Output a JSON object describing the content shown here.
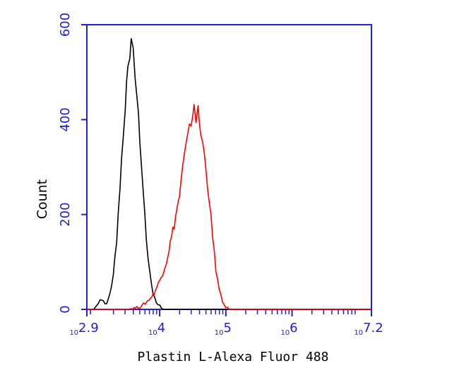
{
  "chart_data": {
    "type": "area",
    "title": "",
    "xlabel": "Plastin L-Alexa Fluor 488",
    "ylabel": "Count",
    "x_scale": "log10",
    "xlim_log10": [
      2.9,
      7.2
    ],
    "ylim": [
      0,
      600
    ],
    "y_ticks": [
      0,
      200,
      400,
      600
    ],
    "x_tick_labels": [
      {
        "base": "10",
        "exp": "2.9",
        "log10": 2.9
      },
      {
        "base": "10",
        "exp": "4",
        "log10": 4
      },
      {
        "base": "10",
        "exp": "5",
        "log10": 5
      },
      {
        "base": "10",
        "exp": "6",
        "log10": 6
      },
      {
        "base": "10",
        "exp": "7.2",
        "log10": 7.2
      }
    ],
    "grid": false,
    "legend": "none",
    "axis_color": "#2222cc",
    "series": [
      {
        "color": "#000000",
        "points_log10_x": [
          [
            2.9,
            0
          ],
          [
            3.0,
            0
          ],
          [
            3.05,
            8
          ],
          [
            3.1,
            22
          ],
          [
            3.15,
            18
          ],
          [
            3.2,
            10
          ],
          [
            3.25,
            35
          ],
          [
            3.3,
            70
          ],
          [
            3.35,
            150
          ],
          [
            3.4,
            260
          ],
          [
            3.45,
            370
          ],
          [
            3.48,
            420
          ],
          [
            3.5,
            480
          ],
          [
            3.52,
            520
          ],
          [
            3.55,
            540
          ],
          [
            3.57,
            560
          ],
          [
            3.6,
            540
          ],
          [
            3.63,
            495
          ],
          [
            3.66,
            445
          ],
          [
            3.7,
            360
          ],
          [
            3.75,
            250
          ],
          [
            3.8,
            150
          ],
          [
            3.85,
            75
          ],
          [
            3.9,
            35
          ],
          [
            3.95,
            15
          ],
          [
            4.0,
            8
          ],
          [
            4.05,
            0
          ],
          [
            7.2,
            0
          ]
        ]
      },
      {
        "color": "#ff0000",
        "points_log10_x": [
          [
            2.9,
            0
          ],
          [
            3.5,
            0
          ],
          [
            3.7,
            5
          ],
          [
            3.8,
            15
          ],
          [
            3.9,
            30
          ],
          [
            4.0,
            60
          ],
          [
            4.1,
            100
          ],
          [
            4.2,
            165
          ],
          [
            4.3,
            240
          ],
          [
            4.35,
            300
          ],
          [
            4.4,
            345
          ],
          [
            4.45,
            380
          ],
          [
            4.5,
            410
          ],
          [
            4.52,
            435
          ],
          [
            4.55,
            400
          ],
          [
            4.58,
            420
          ],
          [
            4.62,
            370
          ],
          [
            4.65,
            350
          ],
          [
            4.7,
            300
          ],
          [
            4.75,
            230
          ],
          [
            4.8,
            150
          ],
          [
            4.85,
            85
          ],
          [
            4.9,
            40
          ],
          [
            4.95,
            15
          ],
          [
            5.0,
            5
          ],
          [
            5.05,
            0
          ],
          [
            7.2,
            0
          ]
        ]
      }
    ]
  }
}
